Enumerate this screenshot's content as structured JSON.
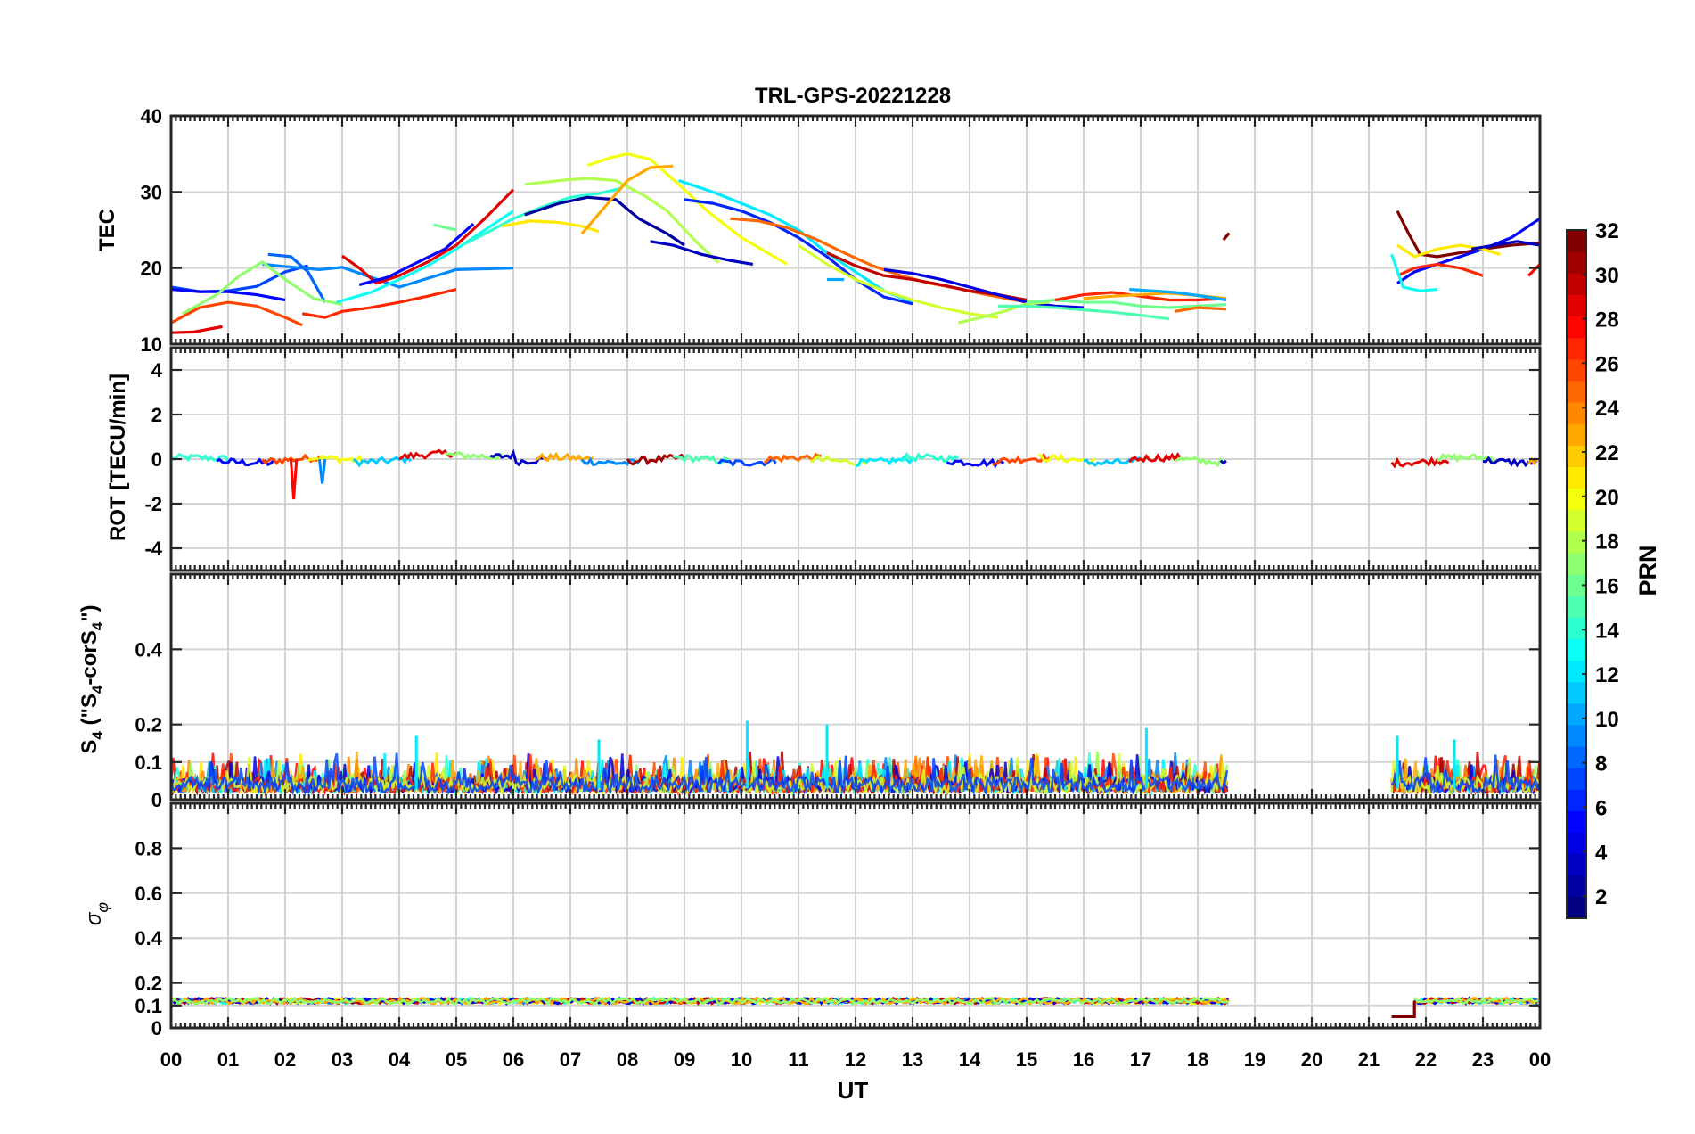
{
  "chart_data": [
    {
      "type": "line",
      "panel": "tec",
      "title": "TRL-GPS-20221228",
      "ylabel": "TEC",
      "ylim": [
        10,
        40
      ],
      "yticks": [
        10,
        20,
        30,
        40
      ],
      "grid": true,
      "series": [
        {
          "name": "PRN 7",
          "prn": 7,
          "x": [
            0.0,
            0.5,
            1.0,
            1.5,
            2.0,
            2.4
          ],
          "values": [
            17.5,
            16.9,
            17.0,
            17.6,
            19.5,
            20.3
          ]
        },
        {
          "name": "PRN 9",
          "prn": 9,
          "x": [
            1.6,
            2.0,
            2.6,
            3.0,
            4.0,
            5.0,
            6.0
          ],
          "values": [
            20.5,
            20.2,
            19.8,
            20.1,
            17.5,
            19.8,
            20.0
          ]
        },
        {
          "name": "PRN 5",
          "prn": 5,
          "x": [
            0.0,
            0.5,
            1.0,
            1.5,
            2.0
          ],
          "values": [
            17.2,
            16.9,
            16.9,
            16.5,
            15.8
          ]
        },
        {
          "name": "PRN 8",
          "prn": 8,
          "x": [
            1.7,
            2.1,
            2.4,
            2.7
          ],
          "values": [
            21.8,
            21.5,
            19.5,
            15.5
          ]
        },
        {
          "name": "PRN 17",
          "prn": 17,
          "x": [
            0.2,
            0.8,
            1.2,
            1.6,
            2.0,
            2.5,
            3.0
          ],
          "values": [
            14.0,
            16.5,
            19.0,
            20.8,
            18.5,
            16.0,
            15.2
          ]
        },
        {
          "name": "PRN 26",
          "prn": 26,
          "x": [
            0.0,
            0.5,
            1.0,
            1.5,
            2.0,
            2.3
          ],
          "values": [
            12.8,
            14.8,
            15.5,
            15.0,
            13.5,
            12.5
          ]
        },
        {
          "name": "PRN 29",
          "prn": 29,
          "x": [
            0.0,
            0.4,
            0.9
          ],
          "values": [
            11.5,
            11.6,
            12.3
          ]
        },
        {
          "name": "PRN 27",
          "prn": 27,
          "x": [
            2.3,
            2.7,
            3.0,
            3.5,
            4.0,
            4.5,
            5.0
          ],
          "values": [
            14.0,
            13.5,
            14.3,
            14.8,
            15.5,
            16.3,
            17.2
          ]
        },
        {
          "name": "PRN 29",
          "prn": 29,
          "x": [
            3.0,
            3.3,
            3.6,
            4.0,
            4.5,
            5.0,
            5.5,
            6.0
          ],
          "values": [
            21.6,
            20.0,
            18.0,
            19.0,
            20.8,
            23.0,
            26.5,
            30.3
          ]
        },
        {
          "name": "PRN 5",
          "prn": 5,
          "x": [
            3.3,
            3.8,
            4.2,
            4.8,
            5.3
          ],
          "values": [
            17.8,
            18.8,
            20.3,
            22.5,
            25.8
          ]
        },
        {
          "name": "PRN 13",
          "prn": 13,
          "x": [
            2.9,
            3.5,
            4.0,
            4.5,
            5.0,
            5.5,
            6.0
          ],
          "values": [
            15.5,
            16.8,
            18.5,
            20.3,
            22.5,
            25.0,
            27.5
          ]
        },
        {
          "name": "PRN 16",
          "prn": 16,
          "x": [
            4.6,
            5.0
          ],
          "values": [
            25.7,
            25.0
          ]
        },
        {
          "name": "PRN 14",
          "prn": 14,
          "x": [
            5.1,
            5.5,
            6.0,
            6.5,
            7.0,
            7.5,
            7.9
          ],
          "values": [
            23.0,
            24.5,
            26.5,
            28.0,
            29.3,
            29.8,
            30.5
          ]
        },
        {
          "name": "PRN 21",
          "prn": 21,
          "x": [
            5.8,
            6.3,
            6.8,
            7.2,
            7.5
          ],
          "values": [
            25.5,
            26.2,
            26.0,
            25.5,
            24.8
          ]
        },
        {
          "name": "PRN 18",
          "prn": 18,
          "x": [
            6.2,
            6.8,
            7.3,
            7.8,
            8.3,
            8.7,
            9.2,
            9.6
          ],
          "values": [
            31.0,
            31.5,
            31.8,
            31.5,
            29.5,
            27.5,
            23.5,
            20.7
          ]
        },
        {
          "name": "PRN 2",
          "prn": 2,
          "x": [
            6.2,
            6.8,
            7.3,
            7.8,
            8.2,
            8.7,
            9.0
          ],
          "values": [
            27.0,
            28.5,
            29.3,
            29.0,
            26.5,
            24.5,
            23.0
          ]
        },
        {
          "name": "PRN 20",
          "prn": 20,
          "x": [
            7.3,
            7.7,
            8.0,
            8.4,
            8.9,
            9.4,
            10.0,
            10.8
          ],
          "values": [
            33.5,
            34.5,
            35.0,
            34.3,
            31.0,
            27.5,
            24.0,
            20.5
          ]
        },
        {
          "name": "PRN 23",
          "prn": 23,
          "x": [
            7.2,
            7.6,
            8.0,
            8.4,
            8.8
          ],
          "values": [
            24.5,
            28.0,
            31.5,
            33.2,
            33.4
          ]
        },
        {
          "name": "PRN 12",
          "prn": 12,
          "x": [
            8.9,
            9.5,
            10.0,
            10.5,
            11.0,
            11.5,
            12.0,
            12.5,
            13.0
          ],
          "values": [
            31.5,
            30.0,
            28.5,
            27.0,
            25.0,
            22.0,
            19.5,
            17.0,
            15.5
          ]
        },
        {
          "name": "PRN 3",
          "prn": 3,
          "x": [
            8.4,
            8.8,
            9.3,
            9.8,
            10.2
          ],
          "values": [
            23.5,
            23.0,
            21.8,
            21.0,
            20.5
          ]
        },
        {
          "name": "PRN 6",
          "prn": 6,
          "x": [
            9.0,
            9.5,
            10.0,
            10.5,
            11.0,
            11.5,
            12.0,
            12.5,
            13.0
          ],
          "values": [
            29.0,
            28.5,
            27.5,
            26.0,
            24.0,
            21.5,
            18.5,
            16.2,
            15.3
          ]
        },
        {
          "name": "PRN 25",
          "prn": 25,
          "x": [
            9.8,
            10.3,
            10.8,
            11.3,
            11.8,
            12.3,
            12.8,
            13.3,
            13.8,
            14.3,
            14.8,
            15.3
          ],
          "values": [
            26.5,
            26.2,
            25.3,
            23.8,
            22.0,
            20.3,
            19.0,
            18.0,
            17.3,
            16.5,
            15.8,
            15.2
          ]
        },
        {
          "name": "PRN 19",
          "prn": 19,
          "x": [
            11.0,
            11.5,
            12.0,
            12.5,
            13.0,
            13.5,
            14.0,
            14.5
          ],
          "values": [
            23.0,
            20.5,
            18.5,
            17.0,
            15.8,
            14.8,
            14.0,
            13.5
          ]
        },
        {
          "name": "PRN 30",
          "prn": 30,
          "x": [
            11.5,
            12.0,
            12.5,
            13.0,
            13.5,
            14.0,
            14.5,
            15.0
          ],
          "values": [
            22.0,
            20.3,
            19.0,
            18.5,
            17.8,
            17.0,
            16.5,
            15.8
          ]
        },
        {
          "name": "PRN 4",
          "prn": 4,
          "x": [
            12.5,
            13.0,
            13.5,
            14.0,
            14.5,
            15.0,
            15.5,
            16.0
          ],
          "values": [
            19.8,
            19.3,
            18.5,
            17.5,
            16.5,
            15.5,
            15.0,
            14.8
          ]
        },
        {
          "name": "PRN 10",
          "prn": 10,
          "x": [
            11.5,
            11.8
          ],
          "values": [
            18.5,
            18.5
          ]
        },
        {
          "name": "PRN 18",
          "prn": 18,
          "x": [
            13.8,
            14.2,
            14.6,
            15.0,
            15.4
          ],
          "values": [
            12.8,
            13.5,
            14.3,
            15.3,
            15.5
          ]
        },
        {
          "name": "PRN 15",
          "prn": 15,
          "x": [
            14.5,
            15.0,
            15.5,
            16.0,
            16.5,
            17.0,
            17.5
          ],
          "values": [
            15.0,
            15.0,
            14.8,
            14.5,
            14.2,
            13.8,
            13.3
          ]
        },
        {
          "name": "PRN 16",
          "prn": 16,
          "x": [
            15.0,
            15.5,
            16.0,
            16.5,
            17.0,
            17.5,
            18.0,
            18.5
          ],
          "values": [
            15.5,
            15.8,
            15.5,
            15.5,
            15.0,
            14.8,
            15.0,
            15.2
          ]
        },
        {
          "name": "PRN 27",
          "prn": 27,
          "x": [
            15.5,
            16.0,
            16.5,
            17.0,
            17.5,
            18.0,
            18.5
          ],
          "values": [
            15.8,
            16.5,
            16.8,
            16.3,
            15.8,
            15.8,
            16.0
          ]
        },
        {
          "name": "PRN 23",
          "prn": 23,
          "x": [
            16.0,
            16.5,
            17.0,
            17.5,
            18.0,
            18.5
          ],
          "values": [
            16.0,
            16.3,
            16.5,
            16.7,
            16.4,
            16.0
          ]
        },
        {
          "name": "PRN 10",
          "prn": 10,
          "x": [
            16.8,
            17.2,
            17.6,
            18.0,
            18.5
          ],
          "values": [
            17.2,
            17.0,
            16.8,
            16.4,
            15.8
          ]
        },
        {
          "name": "PRN 25",
          "prn": 25,
          "x": [
            17.6,
            18.0,
            18.5
          ],
          "values": [
            14.3,
            14.8,
            14.6
          ]
        },
        {
          "name": "PRN 32",
          "prn": 32,
          "x": [
            18.45,
            18.55
          ],
          "values": [
            23.7,
            24.6
          ]
        },
        {
          "name": "PRN 32",
          "prn": 32,
          "x": [
            21.5,
            21.7,
            21.9,
            22.2,
            22.6,
            23.0,
            23.5,
            24.0
          ],
          "values": [
            27.5,
            24.5,
            21.8,
            21.5,
            22.0,
            22.5,
            23.0,
            23.3
          ]
        },
        {
          "name": "PRN 5",
          "prn": 5,
          "x": [
            21.5,
            21.8,
            22.2,
            22.6,
            23.0,
            23.5,
            24.0
          ],
          "values": [
            18.0,
            19.5,
            20.5,
            21.5,
            22.5,
            24.0,
            26.5
          ]
        },
        {
          "name": "PRN 21",
          "prn": 21,
          "x": [
            21.5,
            21.8,
            22.2,
            22.6,
            23.0,
            23.3
          ],
          "values": [
            23.0,
            21.5,
            22.5,
            23.0,
            22.5,
            21.8
          ]
        },
        {
          "name": "PRN 27",
          "prn": 27,
          "x": [
            21.5,
            21.8,
            22.2,
            22.6,
            23.0
          ],
          "values": [
            19.0,
            20.0,
            20.5,
            20.0,
            19.0
          ]
        },
        {
          "name": "PRN 13",
          "prn": 13,
          "x": [
            21.4,
            21.6,
            21.9,
            22.2
          ],
          "values": [
            21.8,
            17.5,
            17.0,
            17.2
          ]
        },
        {
          "name": "PRN 3",
          "prn": 3,
          "x": [
            22.8,
            23.2,
            23.6,
            24.0
          ],
          "values": [
            22.5,
            23.0,
            23.5,
            23.0
          ]
        },
        {
          "name": "PRN 28",
          "prn": 28,
          "x": [
            23.8,
            24.0
          ],
          "values": [
            19.0,
            20.5
          ]
        }
      ]
    },
    {
      "type": "line",
      "panel": "rot",
      "ylabel": "ROT [TECU/min]",
      "ylim": [
        -5,
        5
      ],
      "yticks": [
        -4,
        -2,
        0,
        2,
        4
      ],
      "grid": true,
      "spike": {
        "x": 2.15,
        "values": [
          0.0,
          -1.8,
          0.0
        ]
      },
      "active_intervals": [
        [
          0.0,
          18.55
        ],
        [
          21.4,
          24.0
        ]
      ]
    },
    {
      "type": "line",
      "panel": "s4",
      "ylabel_main": "S",
      "ylabel_sub": "4",
      "ylabel_rest": " (\"S",
      "ylabel_sub2": "4",
      "ylabel_rest2": "-corS",
      "ylabel_sub3": "4",
      "ylabel_end": "\")",
      "ylim": [
        0,
        0.6
      ],
      "yticks": [
        0,
        0.1,
        0.2,
        0.4
      ],
      "ytick_labels": [
        "0",
        "0.1",
        "0.2",
        "0.4"
      ],
      "grid": true,
      "peaks": [
        {
          "x": 10.1,
          "value": 0.21
        },
        {
          "x": 11.5,
          "value": 0.2
        },
        {
          "x": 17.1,
          "value": 0.19
        },
        {
          "x": 4.3,
          "value": 0.17
        },
        {
          "x": 7.5,
          "value": 0.16
        },
        {
          "x": 22.5,
          "value": 0.16
        },
        {
          "x": 21.5,
          "value": 0.17
        }
      ],
      "active_intervals": [
        [
          0.0,
          18.55
        ],
        [
          21.4,
          24.0
        ]
      ]
    },
    {
      "type": "line",
      "panel": "sigma",
      "ylabel_main": "σ",
      "ylabel_sub": "φ",
      "ylim": [
        0,
        1.0
      ],
      "yticks": [
        0,
        0.1,
        0.2,
        0.4,
        0.6,
        0.8
      ],
      "ytick_labels": [
        "0",
        "0.1",
        "0.2",
        "0.4",
        "0.6",
        "0.8"
      ],
      "grid": true,
      "baseline": 0.12,
      "dip": {
        "x": [
          21.4,
          21.8
        ],
        "value": 0.05
      },
      "active_intervals": [
        [
          0.0,
          18.55
        ],
        [
          21.4,
          24.0
        ]
      ]
    }
  ],
  "xaxis": {
    "label": "UT",
    "xlim": [
      0,
      24
    ],
    "tick_labels": [
      "00",
      "01",
      "02",
      "03",
      "04",
      "05",
      "06",
      "07",
      "08",
      "09",
      "10",
      "11",
      "12",
      "13",
      "14",
      "15",
      "16",
      "17",
      "18",
      "19",
      "20",
      "21",
      "22",
      "23",
      "00"
    ]
  },
  "colorbar": {
    "label": "PRN",
    "range": [
      1,
      32
    ],
    "tick_values": [
      2,
      4,
      6,
      8,
      10,
      12,
      14,
      16,
      18,
      20,
      22,
      24,
      26,
      28,
      30,
      32
    ],
    "tick_labels": [
      "2",
      "4",
      "6",
      "8",
      "10",
      "12",
      "14",
      "16",
      "18",
      "20",
      "22",
      "24",
      "26",
      "28",
      "30",
      "32"
    ],
    "colormap": "jet"
  }
}
